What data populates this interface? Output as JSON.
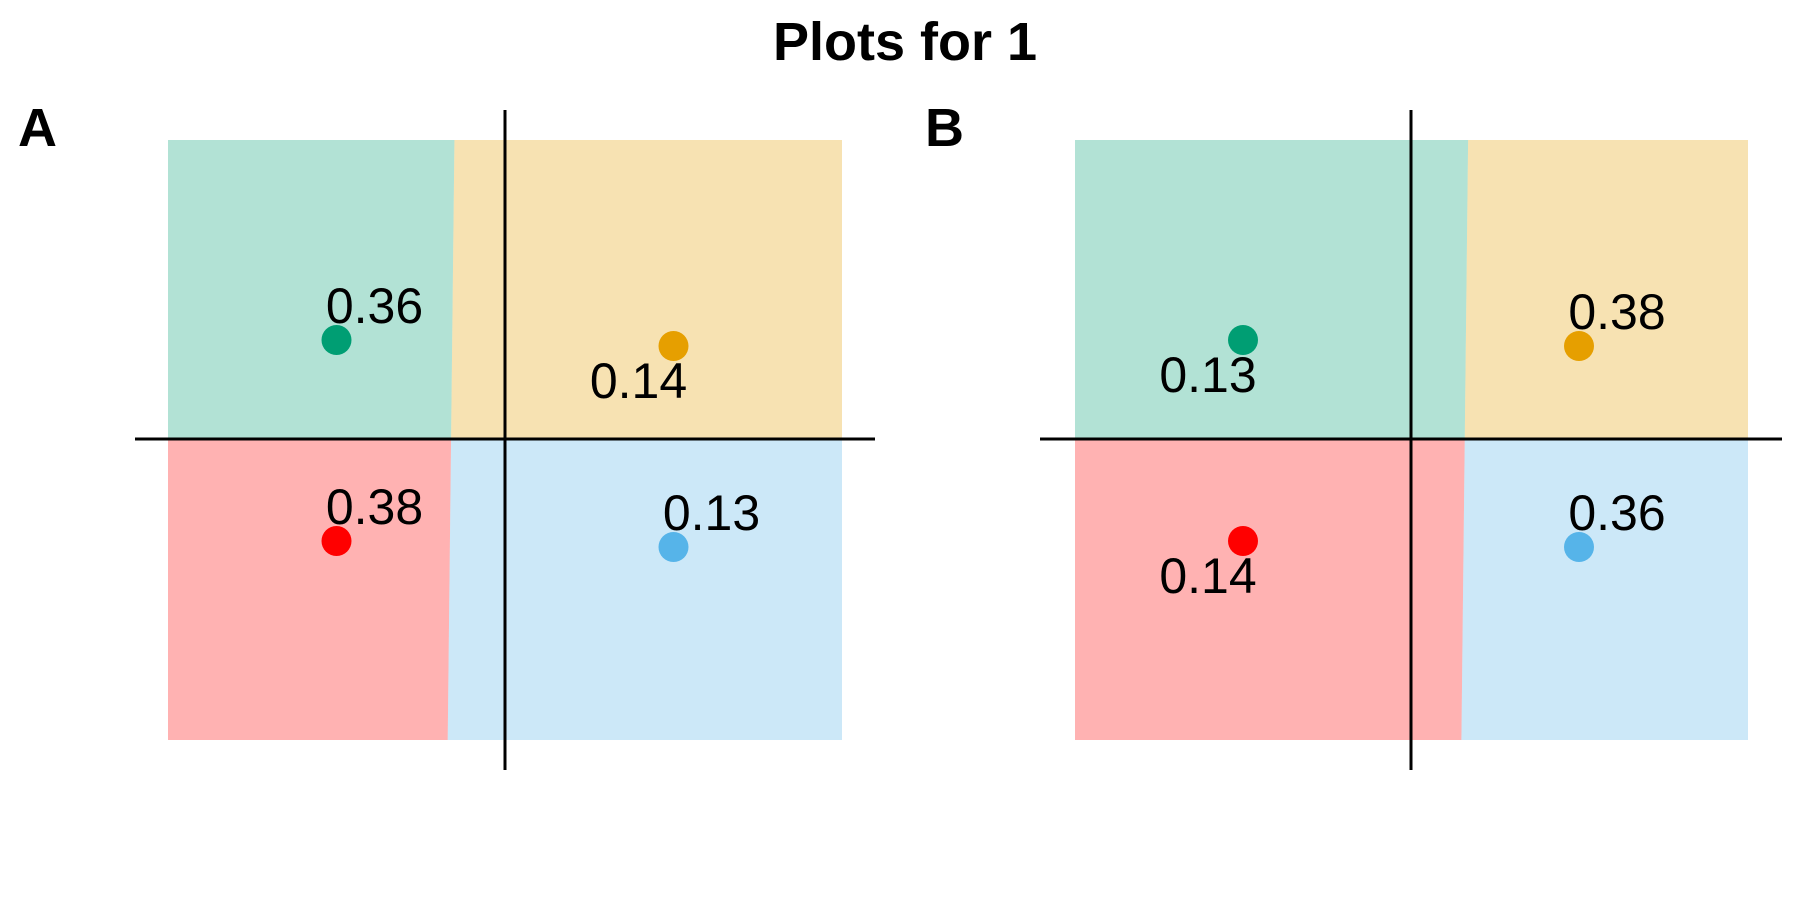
{
  "title": "Plots for 1",
  "colors": {
    "top_left": "#009E73",
    "top_right": "#E69F00",
    "bottom_left": "#FF0000",
    "bottom_right": "#56B4E9",
    "region_opacity": 0.3
  },
  "chart_data": [
    {
      "panel": "A",
      "type": "scatter",
      "xlim": [
        -1.1,
        1.1
      ],
      "ylim": [
        -1.1,
        1.1
      ],
      "grid": false,
      "legend": "none",
      "boundary": {
        "x_top": -0.15,
        "x_bottom": -0.17
      },
      "points": [
        {
          "quadrant": "top_left",
          "x": -0.5,
          "y": 0.33,
          "label": "0.36",
          "label_pos": "above"
        },
        {
          "quadrant": "top_right",
          "x": 0.5,
          "y": 0.31,
          "label": "0.14",
          "label_pos": "below"
        },
        {
          "quadrant": "bottom_left",
          "x": -0.5,
          "y": -0.34,
          "label": "0.38",
          "label_pos": "above"
        },
        {
          "quadrant": "bottom_right",
          "x": 0.5,
          "y": -0.36,
          "label": "0.13",
          "label_pos": "above"
        }
      ]
    },
    {
      "panel": "B",
      "type": "scatter",
      "xlim": [
        -1.1,
        1.1
      ],
      "ylim": [
        -1.1,
        1.1
      ],
      "grid": false,
      "legend": "none",
      "boundary": {
        "x_top": 0.17,
        "x_bottom": 0.15
      },
      "points": [
        {
          "quadrant": "top_left",
          "x": -0.5,
          "y": 0.33,
          "label": "0.13",
          "label_pos": "below"
        },
        {
          "quadrant": "top_right",
          "x": 0.5,
          "y": 0.31,
          "label": "0.38",
          "label_pos": "above"
        },
        {
          "quadrant": "bottom_left",
          "x": -0.5,
          "y": -0.34,
          "label": "0.14",
          "label_pos": "below"
        },
        {
          "quadrant": "bottom_right",
          "x": 0.5,
          "y": -0.36,
          "label": "0.36",
          "label_pos": "above"
        }
      ]
    }
  ]
}
